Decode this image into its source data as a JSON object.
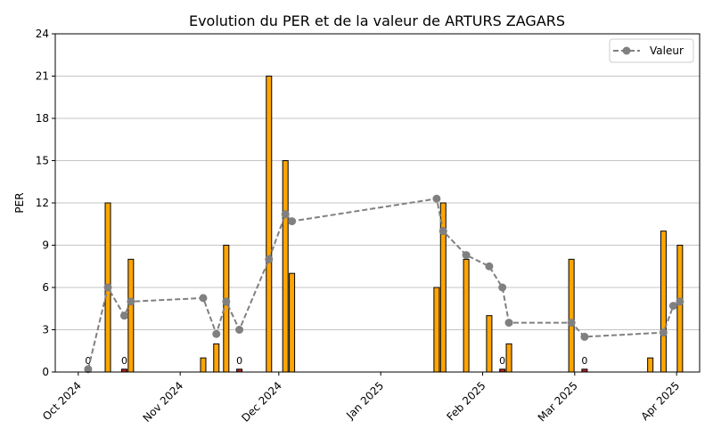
{
  "chart_data": {
    "type": "bar",
    "title": "Evolution du PER et de la valeur de ARTURS ZAGARS",
    "xlabel": "",
    "ylabel": "PER",
    "ylim": [
      0,
      24
    ],
    "yticks": [
      0,
      3,
      6,
      9,
      12,
      15,
      18,
      21,
      24
    ],
    "xlim": [
      "2024-09-24",
      "2025-04-08"
    ],
    "xticks": [
      {
        "date": "2024-10-01",
        "label": "Oct 2024"
      },
      {
        "date": "2024-11-01",
        "label": "Nov 2024"
      },
      {
        "date": "2024-12-01",
        "label": "Dec 2024"
      },
      {
        "date": "2025-01-01",
        "label": "Jan 2025"
      },
      {
        "date": "2025-02-01",
        "label": "Feb 2025"
      },
      {
        "date": "2025-03-01",
        "label": "Mar 2025"
      },
      {
        "date": "2025-04-01",
        "label": "Apr 2025"
      }
    ],
    "grid": "y",
    "legend_position": "top-right",
    "colors": {
      "bar": "#ffa500",
      "bar_zero": "#b22222",
      "bar_edge": "#000000",
      "line": "#808080",
      "grid": "#b0b0b0"
    },
    "bars": [
      {
        "date": "2024-10-04",
        "per": 0.2,
        "label": "0"
      },
      {
        "date": "2024-10-10",
        "per": 12
      },
      {
        "date": "2024-10-15",
        "per": 0.2,
        "label": "0"
      },
      {
        "date": "2024-10-17",
        "per": 8
      },
      {
        "date": "2024-11-08",
        "per": 1
      },
      {
        "date": "2024-11-12",
        "per": 2
      },
      {
        "date": "2024-11-15",
        "per": 9
      },
      {
        "date": "2024-11-19",
        "per": 0.2,
        "label": "0"
      },
      {
        "date": "2024-11-28",
        "per": 21
      },
      {
        "date": "2024-12-03",
        "per": 15
      },
      {
        "date": "2024-12-05",
        "per": 7
      },
      {
        "date": "2025-01-18",
        "per": 6
      },
      {
        "date": "2025-01-20",
        "per": 12
      },
      {
        "date": "2025-01-27",
        "per": 8
      },
      {
        "date": "2025-02-03",
        "per": 4
      },
      {
        "date": "2025-02-07",
        "per": 0.2,
        "label": "0"
      },
      {
        "date": "2025-02-09",
        "per": 2
      },
      {
        "date": "2025-02-28",
        "per": 8
      },
      {
        "date": "2025-03-04",
        "per": 0.2,
        "label": "0"
      },
      {
        "date": "2025-03-24",
        "per": 1
      },
      {
        "date": "2025-03-28",
        "per": 10
      },
      {
        "date": "2025-04-02",
        "per": 9
      }
    ],
    "series": [
      {
        "name": "Valeur",
        "points": [
          {
            "date": "2024-10-04",
            "value": 0.2
          },
          {
            "date": "2024-10-10",
            "value": 6
          },
          {
            "date": "2024-10-15",
            "value": 4
          },
          {
            "date": "2024-10-17",
            "value": 5
          },
          {
            "date": "2024-11-08",
            "value": 5.25
          },
          {
            "date": "2024-11-12",
            "value": 2.7
          },
          {
            "date": "2024-11-15",
            "value": 5
          },
          {
            "date": "2024-11-19",
            "value": 3
          },
          {
            "date": "2024-11-28",
            "value": 8
          },
          {
            "date": "2024-12-03",
            "value": 11.2
          },
          {
            "date": "2024-12-05",
            "value": 10.7
          },
          {
            "date": "2025-01-18",
            "value": 12.3
          },
          {
            "date": "2025-01-20",
            "value": 10
          },
          {
            "date": "2025-01-27",
            "value": 8.3
          },
          {
            "date": "2025-02-03",
            "value": 7.5
          },
          {
            "date": "2025-02-07",
            "value": 6
          },
          {
            "date": "2025-02-09",
            "value": 3.5
          },
          {
            "date": "2025-02-28",
            "value": 3.5
          },
          {
            "date": "2025-03-04",
            "value": 2.5
          },
          {
            "date": "2025-03-28",
            "value": 2.8
          },
          {
            "date": "2025-03-31",
            "value": 4.7
          },
          {
            "date": "2025-04-02",
            "value": 5
          }
        ]
      }
    ]
  }
}
